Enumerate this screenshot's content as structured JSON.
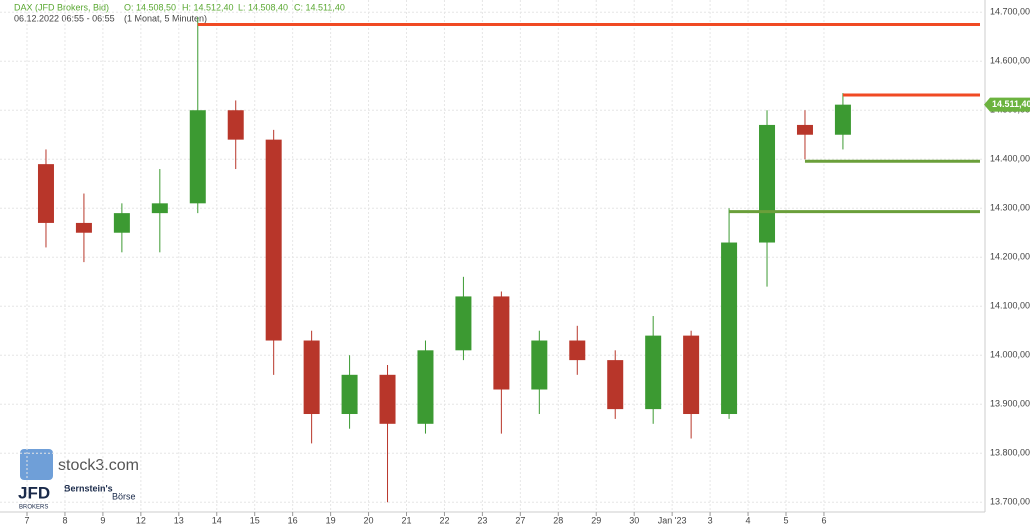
{
  "chart_data": {
    "type": "candlestick",
    "title": "DAX (JFD Brokers, Bid)",
    "ohlc_header": [
      "O: 14.508,50",
      "H: 14.512,40",
      "L: 14.508,40",
      "C: 14.511,40"
    ],
    "subtitle": "06.12.2022 06:55 - 06:55",
    "period": "(1 Monat, 5 Minuten)",
    "brand": "stock3.com",
    "broker": "JFD",
    "broker_sub": "BROKERS",
    "partner": "Bernstein's",
    "partner_sub": "Börse",
    "categories": [
      "7",
      "8",
      "9",
      "12",
      "13",
      "14",
      "15",
      "16",
      "19",
      "20",
      "21",
      "22",
      "23",
      "27",
      "28",
      "29",
      "30",
      "Jan '23",
      "3",
      "4",
      "5",
      "6"
    ],
    "open": [
      14390,
      14270,
      14250,
      14290,
      14310,
      14500,
      14440,
      14030,
      13880,
      13960,
      13860,
      14010,
      14120,
      13930,
      14030,
      13990,
      13890,
      14040,
      13880,
      14230,
      14470,
      14450
    ],
    "high": [
      14420,
      14330,
      14310,
      14380,
      14690,
      14520,
      14460,
      14050,
      14000,
      13980,
      14030,
      14160,
      14130,
      14050,
      14060,
      14010,
      14080,
      14050,
      14300,
      14500,
      14500,
      14535
    ],
    "low": [
      14220,
      14190,
      14210,
      14210,
      14290,
      14380,
      13960,
      13820,
      13850,
      13700,
      13840,
      13990,
      13840,
      13880,
      13960,
      13870,
      13860,
      13830,
      13870,
      14140,
      14400,
      14420
    ],
    "close": [
      14270,
      14250,
      14290,
      14310,
      14500,
      14440,
      14030,
      13880,
      13960,
      13860,
      14010,
      14120,
      13930,
      14030,
      13990,
      13890,
      14040,
      13880,
      14230,
      14470,
      14450,
      14511.4
    ],
    "up_color": "#3c9a32",
    "down_color": "#b8362a",
    "last": {
      "value": 14511.4,
      "label": "14.511,40"
    },
    "last_color": "#6cb33f",
    "levels": [
      {
        "value": 14675,
        "color": "#f04a23",
        "from": "13"
      },
      {
        "value": 14531,
        "color": "#f04a23",
        "from": "6"
      },
      {
        "value": 14396,
        "color": "#6a9f3a",
        "from": "5"
      },
      {
        "value": 14293,
        "color": "#6a9f3a",
        "from": "3"
      }
    ],
    "ylim": [
      13680,
      14725
    ],
    "yticks": [
      {
        "value": 13700,
        "label": "13.700,00"
      },
      {
        "value": 13800,
        "label": "13.800,00"
      },
      {
        "value": 13900,
        "label": "13.900,00"
      },
      {
        "value": 14000,
        "label": "14.000,00"
      },
      {
        "value": 14100,
        "label": "14.100,00"
      },
      {
        "value": 14200,
        "label": "14.200,00"
      },
      {
        "value": 14300,
        "label": "14.300,00"
      },
      {
        "value": 14400,
        "label": "14.400,00"
      },
      {
        "value": 14500,
        "label": "14.500,00"
      },
      {
        "value": 14600,
        "label": "14.600,00"
      },
      {
        "value": 14700,
        "label": "14.700,00"
      }
    ],
    "grid": true
  }
}
